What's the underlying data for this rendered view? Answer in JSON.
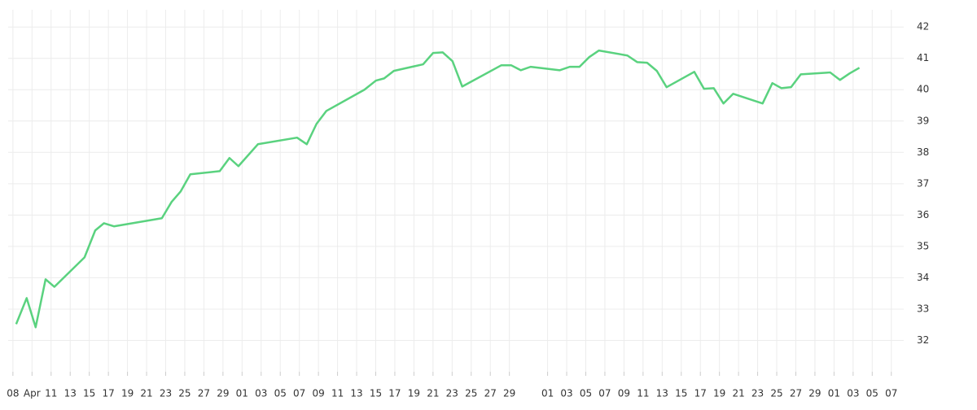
{
  "chart_data": {
    "type": "line",
    "color": "#5ad27f",
    "grid": true,
    "xlim": [
      -0.25,
      46.65
    ],
    "ylim": [
      31,
      42.55
    ],
    "yticks": [
      32,
      33,
      34,
      35,
      36,
      37,
      38,
      39,
      40,
      41,
      42
    ],
    "xticks": [
      {
        "value": 0,
        "label": "08"
      },
      {
        "value": 1,
        "label": "Apr"
      },
      {
        "value": 2,
        "label": "11"
      },
      {
        "value": 3,
        "label": "13"
      },
      {
        "value": 4,
        "label": "15"
      },
      {
        "value": 5,
        "label": "17"
      },
      {
        "value": 6,
        "label": "19"
      },
      {
        "value": 7,
        "label": "21"
      },
      {
        "value": 8,
        "label": "23"
      },
      {
        "value": 9,
        "label": "25"
      },
      {
        "value": 10,
        "label": "27"
      },
      {
        "value": 11,
        "label": "29"
      },
      {
        "value": 12,
        "label": "01"
      },
      {
        "value": 13,
        "label": "03"
      },
      {
        "value": 14,
        "label": "05"
      },
      {
        "value": 15,
        "label": "07"
      },
      {
        "value": 16,
        "label": "09"
      },
      {
        "value": 17,
        "label": "11"
      },
      {
        "value": 18,
        "label": "13"
      },
      {
        "value": 19,
        "label": "15"
      },
      {
        "value": 20,
        "label": "17"
      },
      {
        "value": 21,
        "label": "19"
      },
      {
        "value": 22,
        "label": "21"
      },
      {
        "value": 23,
        "label": "23"
      },
      {
        "value": 24,
        "label": "25"
      },
      {
        "value": 25,
        "label": "27"
      },
      {
        "value": 26,
        "label": "29"
      },
      {
        "value": 28,
        "label": "01"
      },
      {
        "value": 29,
        "label": "03"
      },
      {
        "value": 30,
        "label": "05"
      },
      {
        "value": 31,
        "label": "07"
      },
      {
        "value": 32,
        "label": "09"
      },
      {
        "value": 33,
        "label": "11"
      },
      {
        "value": 34,
        "label": "13"
      },
      {
        "value": 35,
        "label": "15"
      },
      {
        "value": 36,
        "label": "17"
      },
      {
        "value": 37,
        "label": "19"
      },
      {
        "value": 38,
        "label": "21"
      },
      {
        "value": 39,
        "label": "23"
      },
      {
        "value": 40,
        "label": "25"
      },
      {
        "value": 41,
        "label": "27"
      },
      {
        "value": 42,
        "label": "29"
      },
      {
        "value": 43,
        "label": "01"
      },
      {
        "value": 44,
        "label": "03"
      },
      {
        "value": 45,
        "label": "05"
      },
      {
        "value": 46,
        "label": "07"
      }
    ],
    "x": [
      0.17,
      0.72,
      1.19,
      1.71,
      2.17,
      3.75,
      4.31,
      4.77,
      5.29,
      7.8,
      8.31,
      8.78,
      9.29,
      10.83,
      11.34,
      11.81,
      12.83,
      14.88,
      15.39,
      15.9,
      16.41,
      18.41,
      19.01,
      19.44,
      19.95,
      21.48,
      22.0,
      22.51,
      23.02,
      23.53,
      25.58,
      26.09,
      26.6,
      27.11,
      28.64,
      29.16,
      29.67,
      30.18,
      30.69,
      32.18,
      32.69,
      33.21,
      33.72,
      34.23,
      35.68,
      36.19,
      36.7,
      37.21,
      37.72,
      39.26,
      39.77,
      40.24,
      40.75,
      41.26,
      42.8,
      43.31,
      43.82,
      44.33
    ],
    "values": [
      32.52,
      33.35,
      32.42,
      33.95,
      33.71,
      34.65,
      35.51,
      35.74,
      35.64,
      35.9,
      36.42,
      36.75,
      37.3,
      37.4,
      37.82,
      37.56,
      38.26,
      38.47,
      38.26,
      38.91,
      39.32,
      40.0,
      40.29,
      40.36,
      40.6,
      40.81,
      41.17,
      41.19,
      40.91,
      40.1,
      40.78,
      40.78,
      40.62,
      40.73,
      40.62,
      40.73,
      40.73,
      41.04,
      41.25,
      41.09,
      40.88,
      40.86,
      40.6,
      40.08,
      40.57,
      40.03,
      40.05,
      39.56,
      39.87,
      39.56,
      40.21,
      40.05,
      40.08,
      40.49,
      40.55,
      40.31,
      40.52,
      40.7
    ]
  }
}
